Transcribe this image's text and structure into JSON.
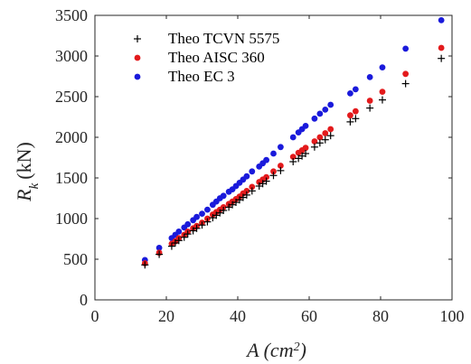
{
  "chart_data": {
    "type": "scatter",
    "xlabel": "A (cm²)",
    "ylabel": "R_k (kN)",
    "xlim": [
      0,
      100
    ],
    "ylim": [
      0,
      3500
    ],
    "x_ticks": [
      0,
      20,
      40,
      60,
      80,
      100
    ],
    "y_ticks": [
      0,
      500,
      1000,
      1500,
      2000,
      2500,
      3000,
      3500
    ],
    "grid": false,
    "legend_position": "top-left",
    "x": [
      14,
      18,
      21.5,
      22.5,
      23.5,
      25,
      26,
      27.5,
      28.5,
      30,
      31.5,
      33,
      34,
      35,
      36,
      37.5,
      38.5,
      39.5,
      40.5,
      41.5,
      42.5,
      44,
      46,
      47,
      48,
      50,
      52,
      55.5,
      57,
      58,
      59,
      61.5,
      63,
      64.5,
      66,
      71.5,
      73,
      77,
      80.5,
      87,
      97
    ],
    "series": [
      {
        "name": "Theo TCVN 5575",
        "color": "#000000",
        "marker": "plus",
        "values": [
          430,
          560,
          660,
          700,
          730,
          770,
          810,
          850,
          880,
          920,
          960,
          1010,
          1040,
          1070,
          1100,
          1140,
          1170,
          1200,
          1230,
          1260,
          1290,
          1340,
          1400,
          1430,
          1460,
          1530,
          1590,
          1700,
          1740,
          1770,
          1800,
          1880,
          1930,
          1970,
          2020,
          2190,
          2230,
          2360,
          2460,
          2660,
          2970
        ]
      },
      {
        "name": "Theo AISC 360",
        "color": "#e31a1c",
        "marker": "circle",
        "values": [
          450,
          580,
          690,
          720,
          760,
          800,
          840,
          880,
          910,
          950,
          1000,
          1050,
          1080,
          1110,
          1140,
          1180,
          1210,
          1240,
          1270,
          1310,
          1340,
          1390,
          1450,
          1480,
          1510,
          1580,
          1650,
          1760,
          1810,
          1840,
          1870,
          1950,
          2000,
          2050,
          2100,
          2270,
          2320,
          2450,
          2560,
          2780,
          3100
        ]
      },
      {
        "name": "Theo EC 3",
        "color": "#1a1adb",
        "marker": "circle",
        "values": [
          490,
          640,
          760,
          800,
          840,
          890,
          930,
          980,
          1020,
          1060,
          1110,
          1170,
          1210,
          1250,
          1280,
          1330,
          1360,
          1400,
          1440,
          1480,
          1520,
          1580,
          1640,
          1680,
          1720,
          1800,
          1880,
          2000,
          2060,
          2100,
          2140,
          2230,
          2290,
          2340,
          2400,
          2540,
          2590,
          2740,
          2860,
          3090,
          3440
        ]
      }
    ]
  }
}
